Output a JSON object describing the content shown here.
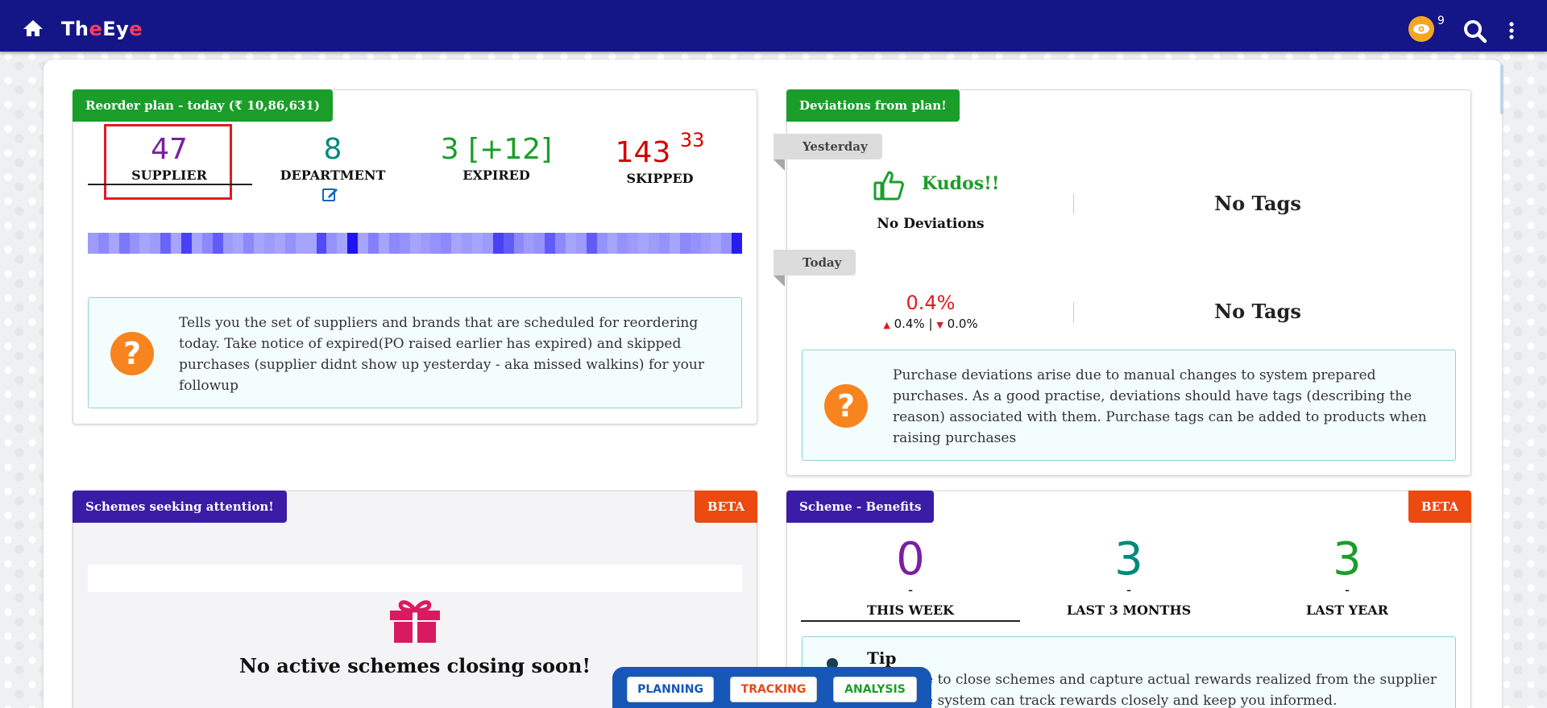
{
  "app": {
    "brand_prefix": "Th",
    "brand_r1": "e",
    "brand_mid": "Ey",
    "brand_r2": "e",
    "notification_count": "9"
  },
  "reorder": {
    "title": "Reorder plan - today (₹ 10,86,631)",
    "stats": [
      {
        "value": "47",
        "sup": "",
        "label": "SUPPLIER",
        "color": "#7b1fa2"
      },
      {
        "value": "8",
        "sup": "",
        "label": "DEPARTMENT",
        "color": "#00897b"
      },
      {
        "value": "3 [+12]",
        "sup": "",
        "label": "EXPIRED",
        "color": "#1a9e29"
      },
      {
        "value": "143",
        "sup": "33",
        "label": "SKIPPED",
        "color": "#d50000"
      }
    ],
    "info": "Tells you the set of suppliers and brands that are scheduled for reordering today. Take notice of expired(PO raised earlier has expired) and skipped purchases (supplier didnt show up yesterday - aka missed walkins) for your followup",
    "heat_levels": [
      0.25,
      0.35,
      0.2,
      0.45,
      0.3,
      0.2,
      0.25,
      0.55,
      0.2,
      0.75,
      0.2,
      0.35,
      0.6,
      0.25,
      0.2,
      0.35,
      0.2,
      0.25,
      0.2,
      0.3,
      0.2,
      0.2,
      0.7,
      0.3,
      0.2,
      1.0,
      0.2,
      0.4,
      0.2,
      0.35,
      0.3,
      0.2,
      0.25,
      0.3,
      0.35,
      0.2,
      0.25,
      0.2,
      0.25,
      0.75,
      0.6,
      0.35,
      0.25,
      0.3,
      0.6,
      0.35,
      0.2,
      0.25,
      0.6,
      0.3,
      0.2,
      0.3,
      0.25,
      0.2,
      0.25,
      0.3,
      0.2,
      0.35,
      0.3,
      0.25,
      0.2,
      0.3,
      0.95
    ]
  },
  "deviations": {
    "title": "Deviations from plan!",
    "yesterday_label": "Yesterday",
    "kudos": "Kudos!!",
    "no_deviations": "No Deviations",
    "no_tags_1": "No Tags",
    "today_label": "Today",
    "today_pct": "0.4%",
    "today_up": "0.4%",
    "today_sep": "|",
    "today_down": "0.0%",
    "no_tags_2": "No Tags",
    "info": "Purchase deviations arise due to manual changes to system prepared purchases. As a good practise, deviations should have tags (describing the reason) associated with them. Purchase tags can be added to products when raising purchases"
  },
  "schemes": {
    "title": "Schemes seeking attention!",
    "beta": "BETA",
    "empty_text": "No active schemes closing soon!"
  },
  "benefits": {
    "title": "Scheme - Benefits",
    "beta": "BETA",
    "stats": [
      {
        "value": "0",
        "dash": "-",
        "label": "THIS WEEK",
        "color": "#7b1fa2"
      },
      {
        "value": "3",
        "dash": "-",
        "label": "LAST 3 MONTHS",
        "color": "#00897b"
      },
      {
        "value": "3",
        "dash": "-",
        "label": "LAST YEAR",
        "color": "#1a9e29"
      }
    ],
    "tip_title": "Tip",
    "tip_line1": "e to close schemes and capture actual rewards realized from the supplier",
    "tip_line2": "e system can track rewards closely and keep you informed."
  },
  "nav": {
    "planning": "PLANNING",
    "tracking": "TRACKING",
    "analysis": "ANALYSIS"
  },
  "colors": {
    "topbar": "#141687",
    "green_tag": "#1a9e29",
    "purple_tag": "#3b1ca6",
    "beta": "#ec4a10",
    "help": "#f7841f"
  }
}
